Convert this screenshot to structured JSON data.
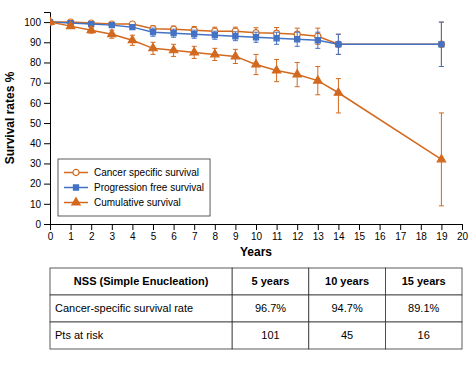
{
  "chart_data": {
    "type": "line",
    "xlabel": "Years",
    "ylabel": "Survival rates %",
    "x": [
      0,
      1,
      2,
      3,
      4,
      5,
      6,
      7,
      8,
      9,
      10,
      11,
      12,
      13,
      14,
      19
    ],
    "series": [
      {
        "name": "Cancer specific survival",
        "color": "#D2691E",
        "marker": "open-circle",
        "line_style": "solid",
        "values": [
          100,
          100,
          99.5,
          99,
          99,
          96.7,
          96.5,
          96,
          95.5,
          95.5,
          94.7,
          94.5,
          94,
          93,
          89,
          89
        ],
        "error_lo": [
          0,
          0.3,
          0.5,
          0.5,
          0.8,
          1.5,
          1.5,
          1.8,
          2,
          2,
          2.5,
          2.8,
          3,
          4,
          5,
          11
        ],
        "error_hi": [
          0,
          0.3,
          0.5,
          0.5,
          0.8,
          1.5,
          1.5,
          1.8,
          2,
          2,
          2.5,
          2.8,
          3,
          4,
          5,
          11
        ]
      },
      {
        "name": "Progression free survival",
        "color": "#4472C4",
        "marker": "square",
        "line_style": "solid",
        "values": [
          100,
          99.5,
          99,
          98.5,
          97.5,
          95,
          94.5,
          94,
          93.5,
          93,
          92.5,
          92,
          91.5,
          91,
          89,
          89
        ],
        "error_lo": [
          0,
          0.3,
          0.5,
          0.8,
          1,
          2,
          2,
          2,
          2,
          2.2,
          2.5,
          3,
          3.5,
          4,
          5,
          11
        ],
        "error_hi": [
          0,
          0.3,
          0.5,
          0.8,
          1,
          2,
          2,
          2,
          2,
          2.2,
          2.5,
          3,
          3.5,
          4,
          5,
          11
        ]
      },
      {
        "name": "Cumulative survival",
        "color": "#D2691E",
        "marker": "triangle",
        "line_style": "solid",
        "values": [
          100,
          98,
          96,
          94,
          91,
          87,
          86,
          85,
          84,
          83,
          79,
          76,
          74,
          71,
          65,
          32
        ],
        "error_lo": [
          0,
          1,
          1.5,
          2,
          2.5,
          3,
          3,
          3,
          3,
          3.5,
          5,
          5.5,
          6,
          7,
          10,
          23
        ],
        "error_hi": [
          0,
          1,
          1.5,
          2,
          2.5,
          3,
          3,
          3,
          3,
          3.5,
          5,
          5.5,
          6,
          7,
          7,
          23
        ]
      }
    ],
    "xlim": [
      0,
      20
    ],
    "ylim": [
      0,
      105
    ],
    "xticks": [
      0,
      1,
      2,
      3,
      4,
      5,
      6,
      7,
      8,
      9,
      10,
      11,
      12,
      13,
      14,
      15,
      16,
      17,
      18,
      19,
      20
    ],
    "yticks": [
      0,
      10,
      20,
      30,
      40,
      50,
      60,
      70,
      80,
      90,
      100
    ],
    "grid": false,
    "legend": "lower left",
    "table": {
      "headers": [
        "NSS (Simple Enucleation)",
        "5 years",
        "10 years",
        "15 years"
      ],
      "rows": [
        [
          "Cancer-specific survival rate",
          "96.7%",
          "94.7%",
          "89.1%"
        ],
        [
          "Pts at risk",
          "101",
          "45",
          "16"
        ]
      ]
    }
  }
}
